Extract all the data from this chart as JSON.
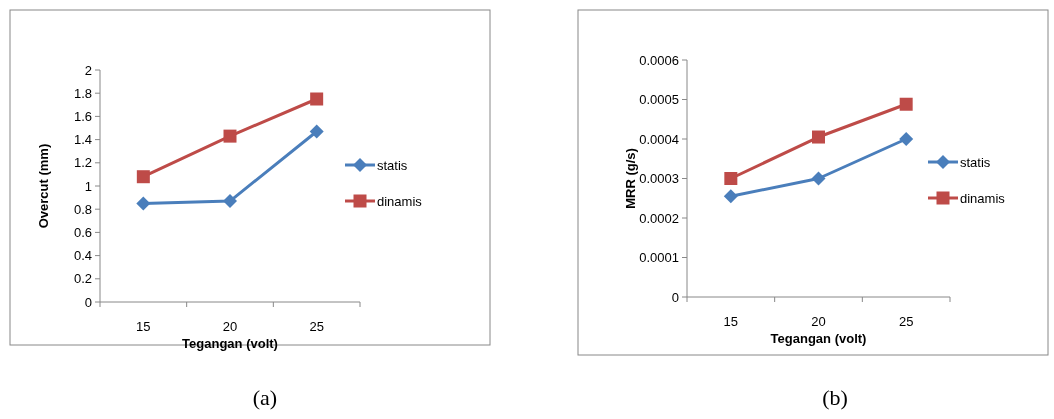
{
  "chart_data": [
    {
      "type": "line",
      "annotations": [
        "(a)"
      ],
      "xlabel": "Tegangan (volt)",
      "ylabel": "Overcut (mm)",
      "categories": [
        "15",
        "20",
        "25"
      ],
      "ylim": [
        0,
        2
      ],
      "yticks": [
        0,
        0.2,
        0.4,
        0.6,
        0.8,
        1,
        1.2,
        1.4,
        1.6,
        1.8,
        2
      ],
      "grid": false,
      "legend": "right",
      "series": [
        {
          "name": "statis",
          "color": "#4a7ebb",
          "marker": "diamond",
          "values": [
            0.85,
            0.87,
            1.47
          ]
        },
        {
          "name": "dinamis",
          "color": "#be4b48",
          "marker": "square",
          "values": [
            1.08,
            1.43,
            1.75
          ]
        }
      ]
    },
    {
      "type": "line",
      "annotations": [
        "(b)"
      ],
      "xlabel": "Tegangan (volt)",
      "ylabel": "MRR (g/s)",
      "categories": [
        "15",
        "20",
        "25"
      ],
      "ylim": [
        0,
        0.0006
      ],
      "yticks": [
        0,
        0.0001,
        0.0002,
        0.0003,
        0.0004,
        0.0005,
        0.0006
      ],
      "grid": false,
      "legend": "right",
      "series": [
        {
          "name": "statis",
          "color": "#4a7ebb",
          "marker": "diamond",
          "values": [
            0.000255,
            0.0003,
            0.0004
          ]
        },
        {
          "name": "dinamis",
          "color": "#be4b48",
          "marker": "square",
          "values": [
            0.0003,
            0.000405,
            0.000488
          ]
        }
      ]
    }
  ]
}
